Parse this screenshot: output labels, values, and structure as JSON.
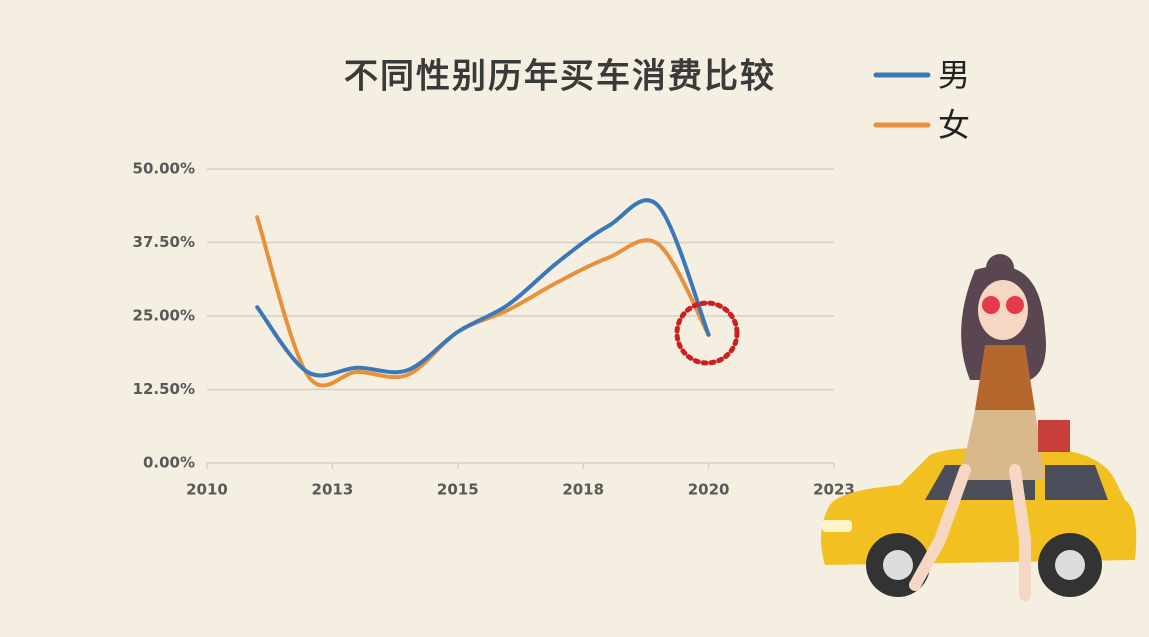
{
  "chart_data": {
    "type": "line",
    "title": "不同性别历年买车消费比较",
    "x": [
      2011,
      2012,
      2013,
      2014,
      2015,
      2016,
      2017,
      2018,
      2019,
      2020
    ],
    "series": [
      {
        "name": "男",
        "color": "#3a78b8",
        "values": [
          26.5,
          15.5,
          16.2,
          15.8,
          22.3,
          26.9,
          34.2,
          40.3,
          43.7,
          21.8
        ]
      },
      {
        "name": "女",
        "color": "#e8913a",
        "values": [
          41.8,
          15,
          15.5,
          15,
          22.3,
          26,
          30.8,
          34.9,
          37.2,
          21.8
        ]
      }
    ],
    "xlim": [
      2010,
      2022.5
    ],
    "xticks": [
      2010,
      {
        "value": 2012.5,
        "label": "2013"
      },
      2015,
      {
        "value": 2017.5,
        "label": "2018"
      },
      2020,
      {
        "value": 2022.5,
        "label": "2023"
      }
    ],
    "ylim": [
      0,
      50
    ],
    "yticks": [
      {
        "value": 0,
        "label": "0.00%"
      },
      {
        "value": 12.5,
        "label": "12.50%"
      },
      {
        "value": 25,
        "label": "25.00%"
      },
      {
        "value": 37.5,
        "label": "37.50%"
      },
      {
        "value": 50,
        "label": "50.00%"
      }
    ],
    "grid": true,
    "legend": "top-right"
  }
}
